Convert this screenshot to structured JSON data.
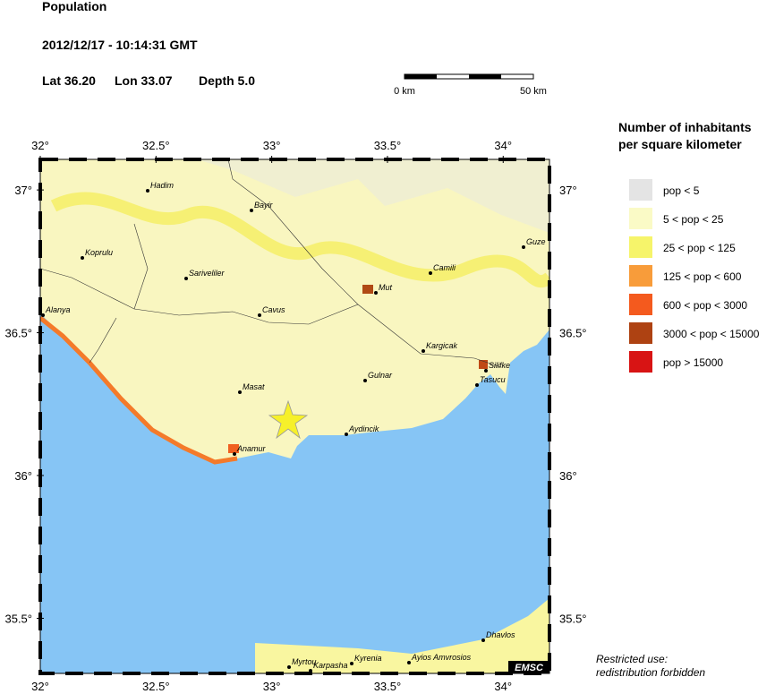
{
  "header": {
    "title": "Population",
    "datetime": "2012/12/17 - 10:14:31 GMT",
    "lat": "Lat 36.20",
    "lon": "Lon 33.07",
    "depth": "Depth 5.0"
  },
  "scale_bar": {
    "start": "0 km",
    "end": "50 km"
  },
  "map": {
    "lon_range": [
      32,
      34.2
    ],
    "lat_range": [
      35.307,
      37.107
    ],
    "lon_ticks": [
      {
        "value": 32,
        "label": "32°"
      },
      {
        "value": 32.5,
        "label": "32.5°"
      },
      {
        "value": 33,
        "label": "33°"
      },
      {
        "value": 33.5,
        "label": "33.5°"
      },
      {
        "value": 34,
        "label": "34°"
      }
    ],
    "lat_ticks": [
      {
        "value": 37,
        "label": "37°"
      },
      {
        "value": 36.5,
        "label": "36.5°"
      },
      {
        "value": 36,
        "label": "36°"
      },
      {
        "value": 35.5,
        "label": "35.5°"
      }
    ],
    "cities": [
      "Hadim",
      "Bayir",
      "Koprulu",
      "Sariveliler",
      "Mut",
      "Camili",
      "Guze",
      "Alanya",
      "Cavus",
      "Kargicak",
      "Silifke",
      "Tasucu",
      "Gulnar",
      "Masat",
      "Aydincik",
      "Anamur",
      "Dhavlos",
      "Myrtou",
      "Karpasha",
      "Kyrenia",
      "Ayios Amvrosios"
    ],
    "badge": "EMSC"
  },
  "legend": {
    "title": [
      "Number of inhabitants",
      "per square kilometer"
    ],
    "items": [
      {
        "label": "pop < 5",
        "color": "#e4e4e4"
      },
      {
        "label": "5 < pop < 25",
        "color": "#fafac6"
      },
      {
        "label": "25 < pop < 125",
        "color": "#f6f46a"
      },
      {
        "label": "125 < pop < 600",
        "color": "#f89c3a"
      },
      {
        "label": "600 < pop < 3000",
        "color": "#f45a1e"
      },
      {
        "label": "3000 < pop < 15000",
        "color": "#ae4212"
      },
      {
        "label": "pop > 15000",
        "color": "#d81414"
      }
    ]
  },
  "footer": [
    "Restricted use:",
    "redistribution forbidden"
  ]
}
